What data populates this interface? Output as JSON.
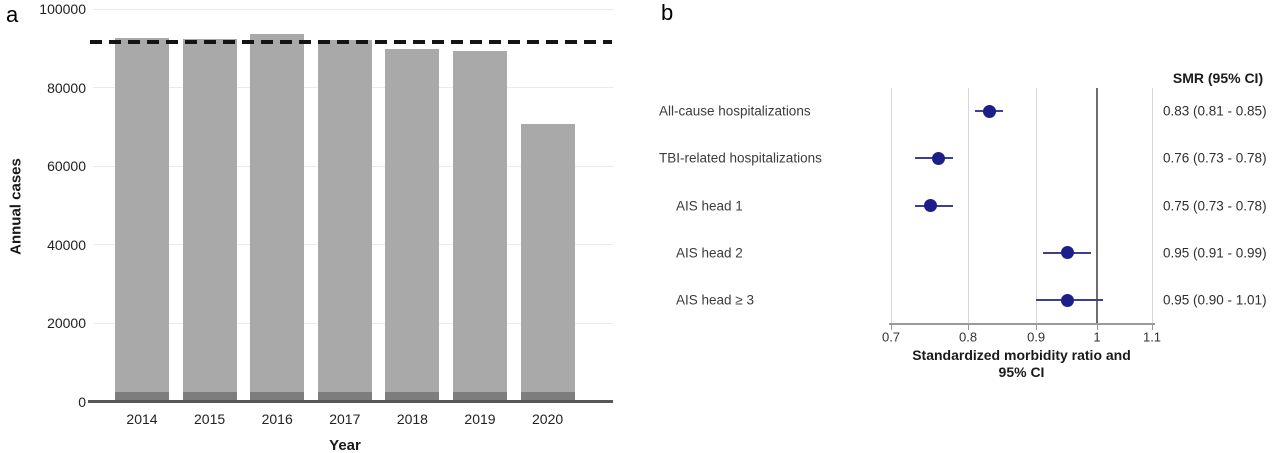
{
  "panels": {
    "a": {
      "letter": "a"
    },
    "b": {
      "letter": "b"
    }
  },
  "chart_data": [
    {
      "id": "annual-cases-by-year",
      "type": "bar",
      "stacked": true,
      "xlabel": "Year",
      "ylabel": "Annual cases",
      "categories": [
        "2014",
        "2015",
        "2016",
        "2017",
        "2018",
        "2019",
        "2020"
      ],
      "series": [
        {
          "name": "lower dark segment",
          "color": "#7d7d7d",
          "values": [
            2500,
            2500,
            2500,
            2500,
            2500,
            2500,
            2500
          ]
        },
        {
          "name": "upper light segment",
          "color": "#a9a9a9",
          "values": [
            90200,
            89900,
            91200,
            89700,
            87200,
            86900,
            68300
          ]
        }
      ],
      "bar_totals": [
        92700,
        92400,
        93700,
        92200,
        89700,
        89400,
        70800
      ],
      "reference_line": {
        "value": 91700,
        "style": "dashed",
        "color": "#141414"
      },
      "ylim": [
        0,
        100000
      ],
      "yticks": [
        "0",
        "20000",
        "40000",
        "60000",
        "80000",
        "100000"
      ],
      "grid": "horizontal"
    },
    {
      "id": "smr-forest-plot",
      "type": "scatter",
      "subtype": "forest",
      "x_scale": "log",
      "xlim": [
        0.7,
        1.1
      ],
      "xticks": [
        "0.7",
        "0.8",
        "0.9",
        "1",
        "1.1"
      ],
      "xlabel_line1": "Standardized morbidity ratio and",
      "xlabel_line2": "95% CI",
      "value_column_header": "SMR (95% CI)",
      "reference_line": {
        "value": 1,
        "color": "#6e6e6e"
      },
      "marker_color": "#1c1f8a",
      "ci_color": "#3c418f",
      "rows": [
        {
          "label": "All-cause hospitalizations",
          "indent": false,
          "smr": 0.83,
          "ci_low": 0.81,
          "ci_high": 0.85,
          "display": "0.83 (0.81 - 0.85)"
        },
        {
          "label": "TBI-related hospitalizations",
          "indent": false,
          "smr": 0.76,
          "ci_low": 0.73,
          "ci_high": 0.78,
          "display": "0.76 (0.73 - 0.78)"
        },
        {
          "label": "AIS head 1",
          "indent": true,
          "smr": 0.75,
          "ci_low": 0.73,
          "ci_high": 0.78,
          "display": "0.75 (0.73 - 0.78)"
        },
        {
          "label": "AIS head 2",
          "indent": true,
          "smr": 0.95,
          "ci_low": 0.91,
          "ci_high": 0.99,
          "display": "0.95 (0.91 - 0.99)"
        },
        {
          "label": "AIS head ≥ 3",
          "indent": true,
          "smr": 0.95,
          "ci_low": 0.9,
          "ci_high": 1.01,
          "display": "0.95 (0.90 - 1.01)"
        }
      ]
    }
  ]
}
